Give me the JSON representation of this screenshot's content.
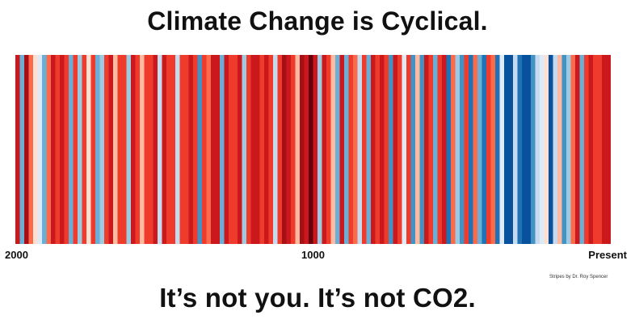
{
  "title": "Climate Change is Cyclical.",
  "subtitle": "It’s not you.  It’s not CO2.",
  "credit": "Stripes by Dr. Roy Spencer",
  "colors": {
    "scale": [
      "#08306b",
      "#08519c",
      "#2171b5",
      "#4292c6",
      "#6baed6",
      "#9ecae1",
      "#c6dbef",
      "#deebf7",
      "#fee0d2",
      "#fcbba1",
      "#fc9272",
      "#fb6a4a",
      "#ef3b2c",
      "#cb181d",
      "#a50f15",
      "#67000d"
    ]
  },
  "chart_data": {
    "type": "heatmap",
    "x_direction": "reversed",
    "x_range": [
      2000,
      0
    ],
    "tick_labels": [
      "2000",
      "1000",
      "Present"
    ],
    "tick_values": [
      2000,
      1000,
      0
    ],
    "value_scale": "anomaly class 0 (coldest) to 15 (warmest)",
    "values": [
      13,
      4,
      14,
      11,
      8,
      7,
      4,
      11,
      13,
      12,
      13,
      12,
      4,
      12,
      5,
      12,
      8,
      12,
      4,
      5,
      12,
      13,
      9,
      12,
      12,
      5,
      13,
      12,
      9,
      12,
      12,
      13,
      6,
      13,
      12,
      12,
      6,
      12,
      12,
      13,
      12,
      3,
      12,
      11,
      13,
      13,
      4,
      13,
      12,
      12,
      13,
      5,
      12,
      13,
      13,
      12,
      13,
      12,
      6,
      12,
      14,
      13,
      12,
      9,
      14,
      13,
      15,
      13,
      5,
      13,
      12,
      9,
      4,
      13,
      4,
      12,
      11,
      6,
      12,
      4,
      13,
      12,
      13,
      12,
      3,
      13,
      12,
      7,
      12,
      3,
      9,
      3,
      13,
      12,
      4,
      12,
      13,
      2,
      11,
      5,
      3,
      12,
      2,
      11,
      4,
      2,
      12,
      11,
      2,
      7,
      1,
      1,
      6,
      2,
      1,
      1,
      3,
      6,
      7,
      8,
      1,
      6,
      9,
      3,
      5,
      11,
      13,
      4,
      12,
      13,
      12,
      12,
      13,
      13
    ]
  }
}
